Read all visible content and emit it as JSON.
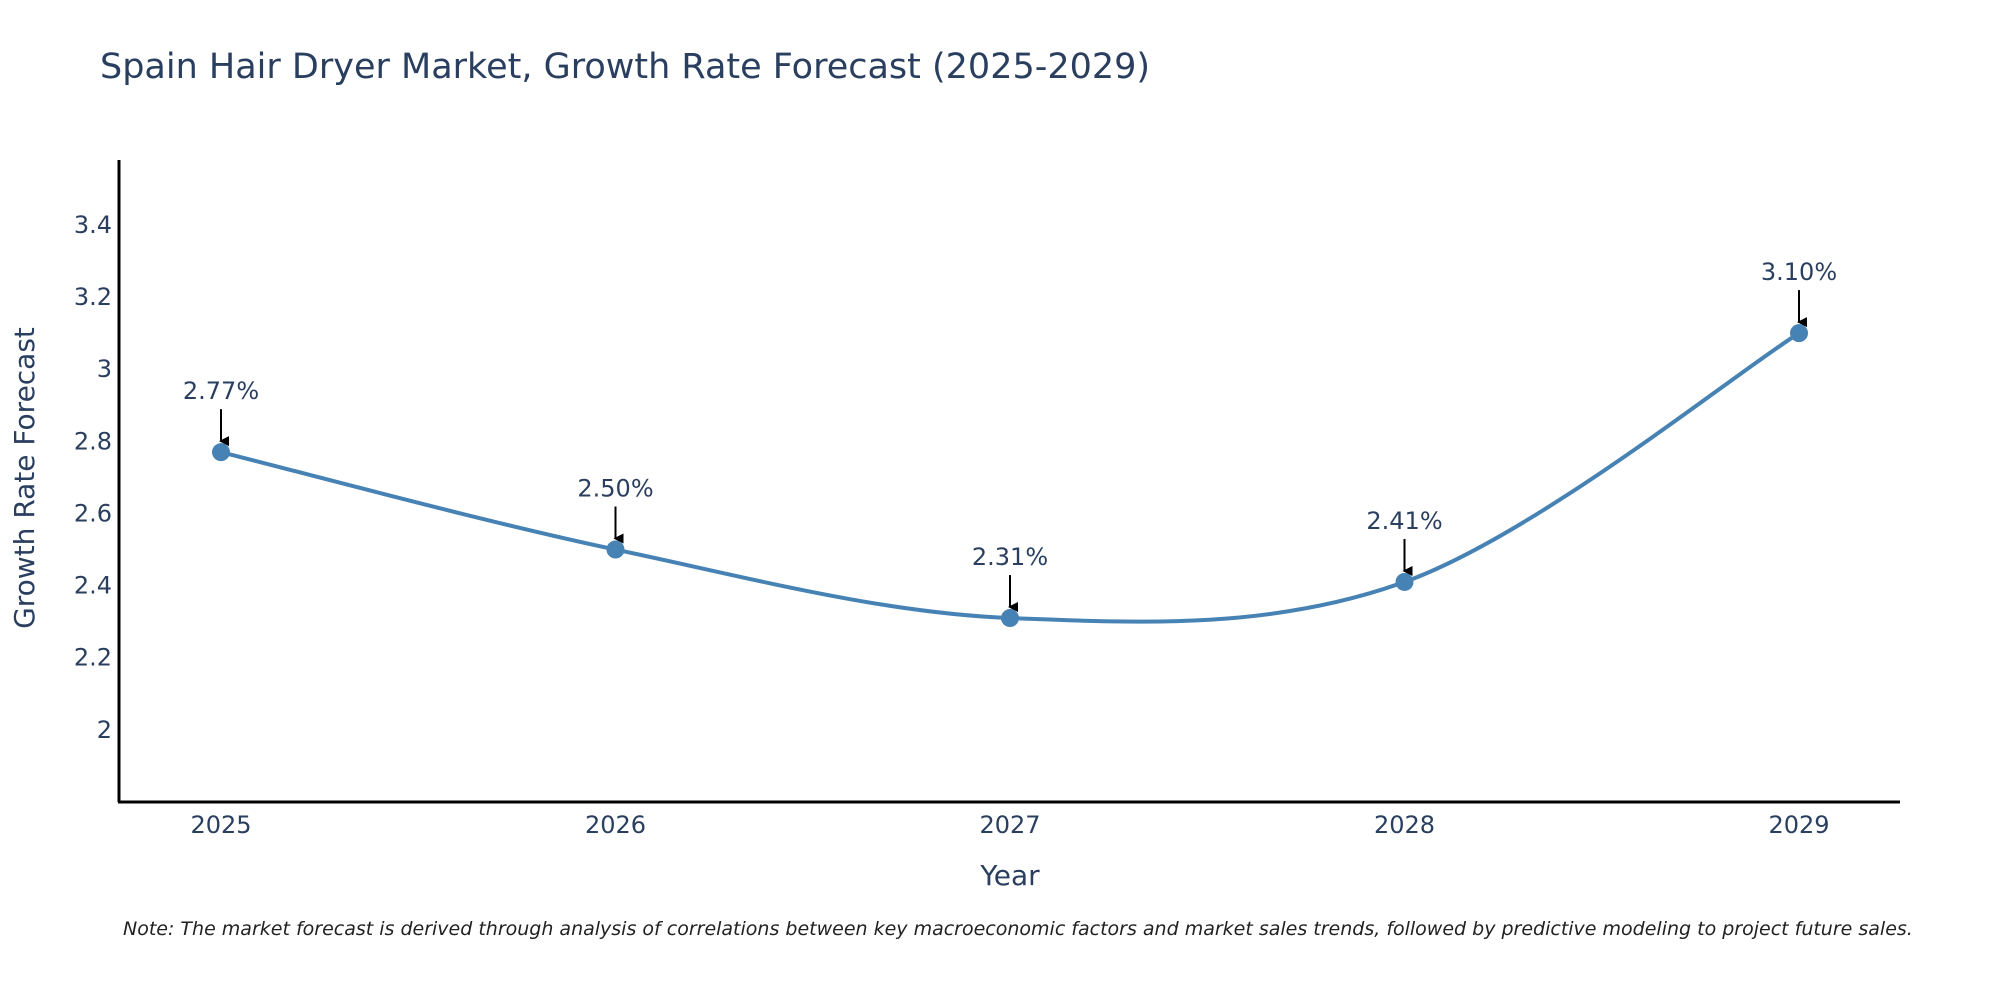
{
  "chart_data": {
    "type": "line",
    "title": "Spain Hair Dryer Market, Growth Rate Forecast (2025-2029)",
    "xlabel": "Year",
    "ylabel": "Growth Rate Forecast",
    "categories": [
      "2025",
      "2026",
      "2027",
      "2028",
      "2029"
    ],
    "series": [
      {
        "name": "Growth Rate Forecast",
        "values": [
          2.77,
          2.5,
          2.31,
          2.41,
          3.1
        ],
        "color": "#4682b4",
        "smooth": true,
        "markers": true
      }
    ],
    "data_labels": [
      "2.77%",
      "2.50%",
      "2.31%",
      "2.41%",
      "3.10%"
    ],
    "yticks": [
      2,
      2.2,
      2.4,
      2.6,
      2.8,
      3,
      3.2,
      3.4
    ],
    "ytick_labels": [
      "2",
      "2.2",
      "2.4",
      "2.6",
      "2.8",
      "3",
      "3.2",
      "3.4"
    ],
    "ylim": [
      1.8,
      3.58
    ],
    "grid": false,
    "legend": "none"
  },
  "footer": {
    "note": "Note: The market forecast is derived through analysis of correlations between key macroeconomic factors and market sales trends, followed by predictive modeling to project future sales."
  },
  "colors": {
    "line": "#4682b4",
    "text": "#2a3f5f",
    "axis": "#000000",
    "arrow": "#000000"
  }
}
